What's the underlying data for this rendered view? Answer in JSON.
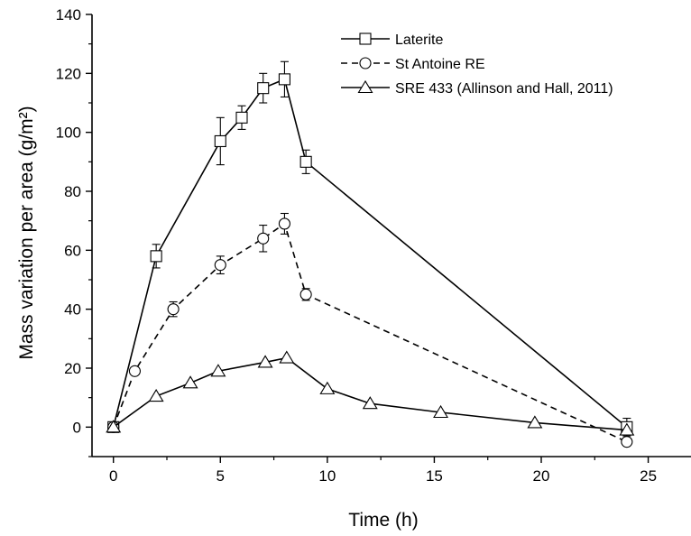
{
  "chart_data": {
    "type": "line",
    "xlabel": "Time (h)",
    "ylabel": "Mass variation per area (g/m²)",
    "xlim": [
      -1,
      27
    ],
    "ylim": [
      -10,
      140
    ],
    "xticks": [
      0,
      5,
      10,
      15,
      20,
      25
    ],
    "yticks": [
      0,
      20,
      40,
      60,
      80,
      100,
      120,
      140
    ],
    "grid": false,
    "legend_position": "top-right",
    "series": [
      {
        "name": "Laterite",
        "marker": "square",
        "line_style": "solid",
        "points": [
          {
            "x": 0,
            "y": 0
          },
          {
            "x": 2,
            "y": 58,
            "err": 4
          },
          {
            "x": 5,
            "y": 97,
            "err": 8
          },
          {
            "x": 6,
            "y": 105,
            "err": 4
          },
          {
            "x": 7,
            "y": 115,
            "err": 5
          },
          {
            "x": 8,
            "y": 118,
            "err": 6
          },
          {
            "x": 9,
            "y": 90,
            "err": 4
          },
          {
            "x": 24,
            "y": 0,
            "err": 3
          }
        ]
      },
      {
        "name": "St Antoine RE",
        "marker": "circle",
        "line_style": "dashed",
        "points": [
          {
            "x": 0,
            "y": 0
          },
          {
            "x": 1,
            "y": 19
          },
          {
            "x": 2.8,
            "y": 40,
            "err": 2.5
          },
          {
            "x": 5,
            "y": 55,
            "err": 3
          },
          {
            "x": 7,
            "y": 64,
            "err": 4.5
          },
          {
            "x": 8,
            "y": 69,
            "err": 3.5
          },
          {
            "x": 9,
            "y": 45,
            "err": 2
          },
          {
            "x": 24,
            "y": -5
          }
        ]
      },
      {
        "name": "SRE 433 (Allinson and Hall, 2011)",
        "marker": "triangle",
        "line_style": "solid",
        "points": [
          {
            "x": 0,
            "y": 0
          },
          {
            "x": 2,
            "y": 10.5
          },
          {
            "x": 3.6,
            "y": 15
          },
          {
            "x": 4.9,
            "y": 19
          },
          {
            "x": 7.1,
            "y": 22
          },
          {
            "x": 8.1,
            "y": 23.5
          },
          {
            "x": 10,
            "y": 13
          },
          {
            "x": 12,
            "y": 8
          },
          {
            "x": 15.3,
            "y": 5
          },
          {
            "x": 19.7,
            "y": 1.5
          },
          {
            "x": 24,
            "y": -1
          }
        ]
      }
    ]
  }
}
